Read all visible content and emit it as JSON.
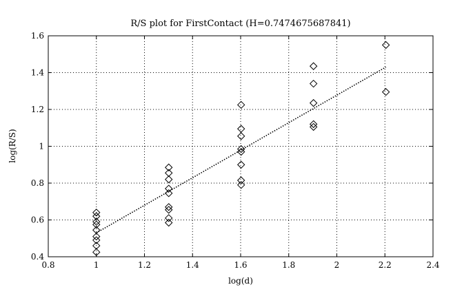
{
  "chart_data": {
    "type": "scatter",
    "title": "R/S plot for FirstContact (H=0.7474675687841)",
    "xlabel": "log(d)",
    "ylabel": "log(R/S)",
    "xlim": [
      0.8,
      2.4
    ],
    "ylim": [
      0.4,
      1.6
    ],
    "xticks": [
      0.8,
      1,
      1.2,
      1.4,
      1.6,
      1.8,
      2,
      2.2,
      2.4
    ],
    "xtick_labels": [
      "0.8",
      "1",
      "1.2",
      "1.4",
      "1.6",
      "1.8",
      "2",
      "2.2",
      "2.4"
    ],
    "yticks": [
      0.4,
      0.6,
      0.8,
      1,
      1.2,
      1.4,
      1.6
    ],
    "ytick_labels": [
      "0.4",
      "0.6",
      "0.8",
      "1",
      "1.2",
      "1.4",
      "1.6"
    ],
    "grid": true,
    "marker": "diamond",
    "points": [
      {
        "x": 1.0,
        "y": 0.64
      },
      {
        "x": 1.0,
        "y": 0.62
      },
      {
        "x": 1.0,
        "y": 0.59
      },
      {
        "x": 1.0,
        "y": 0.575
      },
      {
        "x": 1.0,
        "y": 0.545
      },
      {
        "x": 1.0,
        "y": 0.51
      },
      {
        "x": 1.0,
        "y": 0.49
      },
      {
        "x": 1.0,
        "y": 0.46
      },
      {
        "x": 1.0,
        "y": 0.425
      },
      {
        "x": 1.301,
        "y": 0.885
      },
      {
        "x": 1.301,
        "y": 0.855
      },
      {
        "x": 1.301,
        "y": 0.82
      },
      {
        "x": 1.301,
        "y": 0.77
      },
      {
        "x": 1.301,
        "y": 0.745
      },
      {
        "x": 1.301,
        "y": 0.67
      },
      {
        "x": 1.301,
        "y": 0.655
      },
      {
        "x": 1.301,
        "y": 0.61
      },
      {
        "x": 1.301,
        "y": 0.585
      },
      {
        "x": 1.602,
        "y": 1.225
      },
      {
        "x": 1.602,
        "y": 1.095
      },
      {
        "x": 1.602,
        "y": 1.055
      },
      {
        "x": 1.602,
        "y": 0.985
      },
      {
        "x": 1.602,
        "y": 0.97
      },
      {
        "x": 1.602,
        "y": 0.9
      },
      {
        "x": 1.602,
        "y": 0.815
      },
      {
        "x": 1.602,
        "y": 0.79
      },
      {
        "x": 1.903,
        "y": 1.435
      },
      {
        "x": 1.903,
        "y": 1.34
      },
      {
        "x": 1.903,
        "y": 1.235
      },
      {
        "x": 1.903,
        "y": 1.12
      },
      {
        "x": 1.903,
        "y": 1.105
      },
      {
        "x": 2.204,
        "y": 1.55
      },
      {
        "x": 2.204,
        "y": 1.295
      }
    ],
    "fit_line": {
      "x": [
        1.0,
        2.204
      ],
      "y": [
        0.53,
        1.43
      ],
      "style": "dotted"
    }
  }
}
